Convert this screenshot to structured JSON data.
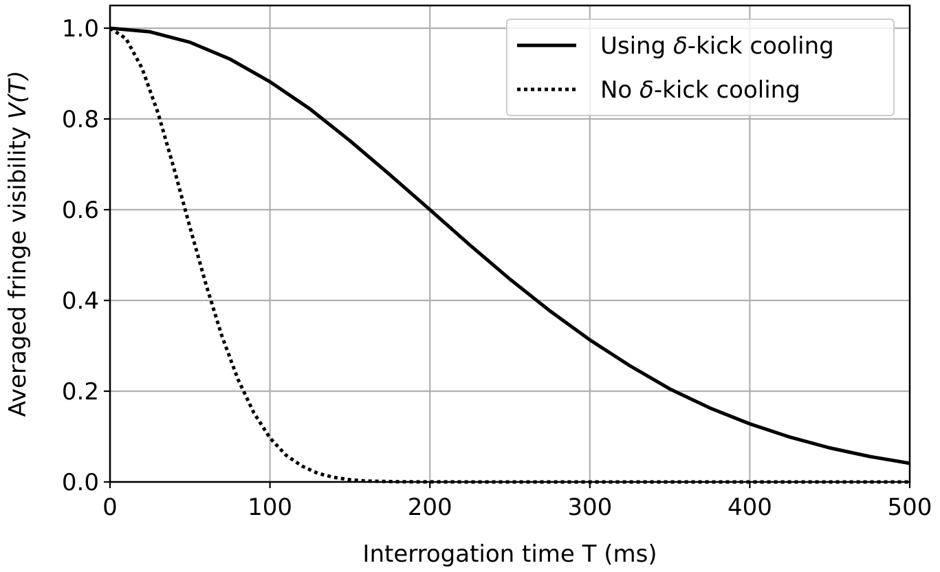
{
  "chart_data": {
    "type": "line",
    "title": "",
    "xlabel": "Interrogation time T (ms)",
    "ylabel_main": "Averaged fringe visibility ",
    "ylabel_math": "V(T)",
    "xlim": [
      0,
      500
    ],
    "ylim": [
      0,
      1.05
    ],
    "xticks": [
      0,
      100,
      200,
      300,
      400,
      500
    ],
    "xtick_labels": [
      "0",
      "100",
      "200",
      "300",
      "400",
      "500"
    ],
    "yticks": [
      0.0,
      0.2,
      0.4,
      0.6,
      0.8,
      1.0
    ],
    "ytick_labels": [
      "0.0",
      "0.2",
      "0.4",
      "0.6",
      "0.8",
      "1.0"
    ],
    "grid": true,
    "legend_position": "top-right",
    "series": [
      {
        "name_prefix": "Using ",
        "name_symbol": "δ",
        "name_suffix": "-kick cooling",
        "style": "solid",
        "color": "#000000",
        "x": [
          0,
          25,
          50,
          75,
          100,
          125,
          150,
          175,
          200,
          225,
          250,
          275,
          300,
          325,
          350,
          375,
          400,
          425,
          450,
          475,
          500
        ],
        "y": [
          1.0,
          0.992,
          0.969,
          0.932,
          0.882,
          0.822,
          0.752,
          0.677,
          0.6,
          0.522,
          0.447,
          0.377,
          0.313,
          0.256,
          0.205,
          0.163,
          0.128,
          0.099,
          0.075,
          0.056,
          0.041
        ]
      },
      {
        "name_prefix": "No ",
        "name_symbol": "δ",
        "name_suffix": "-kick cooling",
        "style": "dotted",
        "color": "#000000",
        "x": [
          0,
          10,
          20,
          30,
          40,
          50,
          60,
          70,
          80,
          90,
          100,
          110,
          120,
          130,
          140,
          150,
          160,
          180,
          200,
          250,
          300,
          350,
          400,
          450,
          500
        ],
        "y": [
          1.0,
          0.977,
          0.912,
          0.813,
          0.691,
          0.561,
          0.435,
          0.321,
          0.226,
          0.152,
          0.097,
          0.059,
          0.035,
          0.019,
          0.01,
          0.005,
          0.002,
          0.0005,
          0.0001,
          0.0,
          0.0,
          0.0,
          0.0,
          0.0,
          0.0
        ]
      }
    ]
  }
}
